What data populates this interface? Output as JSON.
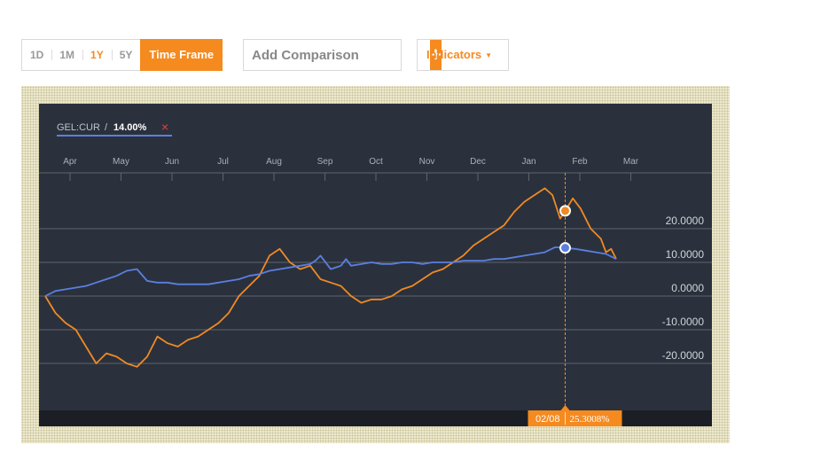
{
  "toolbar": {
    "ranges": [
      "1D",
      "1M",
      "1Y",
      "5Y"
    ],
    "active_range": "1Y",
    "timeframe_label": "Time Frame",
    "comparison_placeholder": "Add Comparison",
    "add_icon": "+",
    "indicators_label": "Indicators",
    "indicators_caret": "▼"
  },
  "legend": {
    "symbol": "GEL:CUR",
    "separator": " / ",
    "change": "14.00%",
    "remove_icon": "×"
  },
  "colors": {
    "accent": "#f58a1f",
    "series_primary": "#5b7fe0",
    "series_comparison": "#f08a24",
    "panel_bg": "#2a313c"
  },
  "tooltip": {
    "date": "02/08",
    "value": "25.3008%"
  },
  "chart_data": {
    "type": "line",
    "months": [
      "Apr",
      "May",
      "Jun",
      "Jul",
      "Aug",
      "Sep",
      "Oct",
      "Nov",
      "Dec",
      "Jan",
      "Feb",
      "Mar"
    ],
    "y_ticks": [
      "20.0000",
      "10.0000",
      "0.0000",
      "-10.0000",
      "-20.0000"
    ],
    "y_tick_values": [
      20,
      10,
      0,
      -10,
      -20
    ],
    "ylim": [
      -32,
      32
    ],
    "marker_x": 10.2,
    "series": [
      {
        "role": "primary",
        "color": "#5b7fe0",
        "x": [
          0,
          0.2,
          0.4,
          0.6,
          0.8,
          1.0,
          1.2,
          1.4,
          1.6,
          1.8,
          2.0,
          2.2,
          2.4,
          2.6,
          2.8,
          3.0,
          3.2,
          3.4,
          3.6,
          3.8,
          4.0,
          4.2,
          4.4,
          4.6,
          4.8,
          5.0,
          5.2,
          5.3,
          5.4,
          5.6,
          5.8,
          5.9,
          6.0,
          6.2,
          6.4,
          6.6,
          6.8,
          7.0,
          7.2,
          7.4,
          7.6,
          7.8,
          8.0,
          8.2,
          8.4,
          8.6,
          8.8,
          9.0,
          9.2,
          9.4,
          9.6,
          9.8,
          10.0,
          10.2,
          10.4,
          10.6,
          10.8,
          11.0,
          11.2
        ],
        "values": [
          0,
          1.5,
          2,
          2.5,
          3,
          4,
          5,
          6,
          7.5,
          8,
          4.5,
          4,
          4,
          3.5,
          3.5,
          3.5,
          3.5,
          4,
          4.5,
          5,
          6,
          6.5,
          7.5,
          8,
          8.5,
          9,
          9.5,
          10.5,
          12,
          8,
          9,
          11,
          9,
          9.5,
          10,
          9.5,
          9.5,
          10,
          10,
          9.5,
          10,
          10,
          10,
          10.5,
          10.5,
          10.5,
          11,
          11,
          11.5,
          12,
          12.5,
          13,
          14.5,
          14.3,
          14,
          13.5,
          13,
          12.5,
          11
        ]
      },
      {
        "role": "comparison",
        "color": "#f08a24",
        "x": [
          0,
          0.2,
          0.4,
          0.6,
          0.8,
          1.0,
          1.2,
          1.4,
          1.6,
          1.8,
          2.0,
          2.2,
          2.4,
          2.6,
          2.8,
          3.0,
          3.2,
          3.4,
          3.6,
          3.8,
          4.0,
          4.2,
          4.4,
          4.6,
          4.8,
          5.0,
          5.2,
          5.4,
          5.6,
          5.8,
          6.0,
          6.2,
          6.4,
          6.6,
          6.8,
          7.0,
          7.2,
          7.4,
          7.6,
          7.8,
          8.0,
          8.2,
          8.4,
          8.6,
          8.8,
          9.0,
          9.2,
          9.4,
          9.6,
          9.8,
          9.95,
          10.1,
          10.2,
          10.35,
          10.5,
          10.7,
          10.9,
          11.0,
          11.1,
          11.2
        ],
        "values": [
          0,
          -5,
          -8,
          -10,
          -15,
          -20,
          -17,
          -18,
          -20,
          -21,
          -18,
          -12,
          -14,
          -15,
          -13,
          -12,
          -10,
          -8,
          -5,
          0,
          3,
          6,
          12,
          14,
          10,
          8,
          9,
          5,
          4,
          3,
          0,
          -2,
          -1,
          -1,
          0,
          2,
          3,
          5,
          7,
          8,
          10,
          12,
          15,
          17,
          19,
          21,
          25,
          28,
          30,
          32,
          30,
          23,
          25.3,
          29,
          26,
          20,
          17,
          13,
          14,
          11
        ]
      }
    ]
  }
}
